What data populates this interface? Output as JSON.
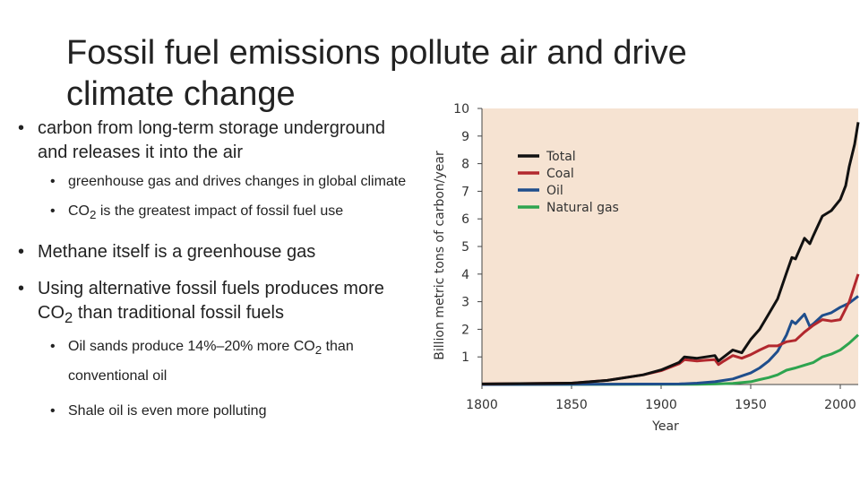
{
  "slide": {
    "title": "Fossil fuel emissions pollute air and drive climate change",
    "bullets": [
      {
        "level": 1,
        "parts": [
          {
            "t": "carbon from long-term storage underground and releases it into the air"
          }
        ]
      },
      {
        "level": 2,
        "parts": [
          {
            "t": "greenhouse gas and drives changes in global climate"
          }
        ]
      },
      {
        "level": 2,
        "parts": [
          {
            "t": "CO"
          },
          {
            "t": "2",
            "sub": true
          },
          {
            "t": " is the greatest impact of fossil fuel use"
          }
        ]
      },
      {
        "level": 1,
        "parts": [
          {
            "t": "Methane itself is a greenhouse gas"
          }
        ]
      },
      {
        "level": 1,
        "parts": [
          {
            "t": "Using alternative fossil fuels produces more CO"
          },
          {
            "t": "2",
            "sub": true
          },
          {
            "t": " than traditional fossil fuels"
          }
        ]
      },
      {
        "level": 2,
        "parts": [
          {
            "t": "Oil sands produce 14%–20% more CO"
          },
          {
            "t": "2",
            "sub": true
          },
          {
            "t": " than conventional oil"
          }
        ]
      },
      {
        "level": 2,
        "parts": [
          {
            "t": "Shale oil is even more polluting"
          }
        ]
      }
    ]
  },
  "chart_data": {
    "type": "line",
    "xlabel": "Year",
    "ylabel": "Billion metric tons of carbon/year",
    "xlim": [
      1800,
      2010
    ],
    "ylim": [
      0,
      10
    ],
    "xticks": [
      1800,
      1850,
      1900,
      1950,
      2000
    ],
    "yticks": [
      1,
      2,
      3,
      4,
      5,
      6,
      7,
      8,
      9,
      10
    ],
    "legend_position": "top-left",
    "background": "#f6e3d2",
    "series": [
      {
        "name": "Total",
        "color": "#111111",
        "x": [
          1800,
          1850,
          1870,
          1890,
          1900,
          1910,
          1913,
          1920,
          1925,
          1930,
          1932,
          1935,
          1940,
          1945,
          1950,
          1955,
          1960,
          1965,
          1970,
          1973,
          1975,
          1980,
          1983,
          1985,
          1990,
          1995,
          2000,
          2003,
          2005,
          2008,
          2010
        ],
        "y": [
          0.02,
          0.05,
          0.15,
          0.35,
          0.53,
          0.8,
          1.0,
          0.95,
          1.0,
          1.05,
          0.85,
          1.0,
          1.25,
          1.15,
          1.63,
          2.0,
          2.55,
          3.1,
          4.05,
          4.6,
          4.55,
          5.3,
          5.1,
          5.4,
          6.1,
          6.3,
          6.7,
          7.2,
          7.9,
          8.7,
          9.5
        ]
      },
      {
        "name": "Coal",
        "color": "#b2282e",
        "x": [
          1800,
          1850,
          1870,
          1890,
          1900,
          1910,
          1913,
          1920,
          1925,
          1930,
          1932,
          1935,
          1940,
          1945,
          1950,
          1955,
          1960,
          1965,
          1970,
          1975,
          1980,
          1985,
          1990,
          1995,
          2000,
          2005,
          2010
        ],
        "y": [
          0.02,
          0.05,
          0.15,
          0.35,
          0.5,
          0.75,
          0.9,
          0.85,
          0.88,
          0.9,
          0.72,
          0.85,
          1.05,
          0.95,
          1.08,
          1.25,
          1.4,
          1.4,
          1.55,
          1.6,
          1.9,
          2.15,
          2.35,
          2.3,
          2.35,
          3.0,
          4.0
        ]
      },
      {
        "name": "Oil",
        "color": "#1f4e8c",
        "x": [
          1800,
          1910,
          1920,
          1930,
          1940,
          1950,
          1955,
          1960,
          1965,
          1970,
          1973,
          1975,
          1980,
          1983,
          1985,
          1990,
          1995,
          2000,
          2005,
          2010
        ],
        "y": [
          0.0,
          0.02,
          0.05,
          0.1,
          0.2,
          0.42,
          0.6,
          0.85,
          1.2,
          1.8,
          2.3,
          2.2,
          2.55,
          2.1,
          2.2,
          2.5,
          2.6,
          2.8,
          2.95,
          3.2
        ]
      },
      {
        "name": "Natural gas",
        "color": "#2ea44f",
        "x": [
          1800,
          1920,
          1930,
          1940,
          1950,
          1955,
          1960,
          1965,
          1970,
          1975,
          1980,
          1985,
          1990,
          1995,
          2000,
          2005,
          2010
        ],
        "y": [
          0.0,
          0.01,
          0.02,
          0.04,
          0.1,
          0.18,
          0.25,
          0.35,
          0.52,
          0.6,
          0.7,
          0.8,
          1.0,
          1.1,
          1.25,
          1.5,
          1.8
        ]
      }
    ]
  }
}
